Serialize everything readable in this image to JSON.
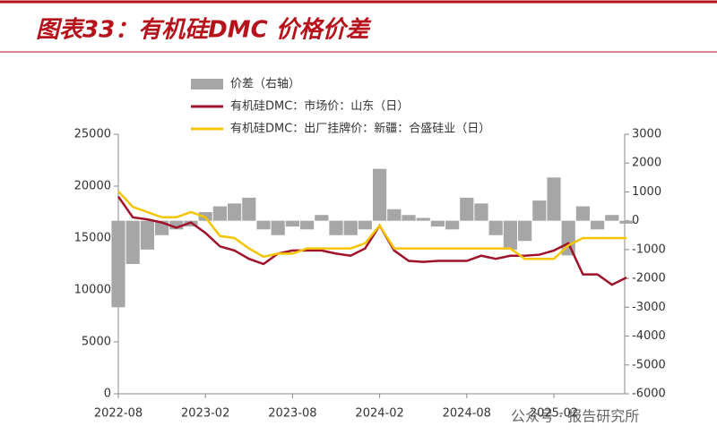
{
  "chart_data": {
    "type": "bar_line_dual",
    "title": "图表33：有机硅DMC 价格价差",
    "categories": [
      "2022-08",
      "2022-09",
      "2022-10",
      "2022-11",
      "2022-12",
      "2023-01",
      "2023-02",
      "2023-03",
      "2023-04",
      "2023-05",
      "2023-06",
      "2023-07",
      "2023-08",
      "2023-09",
      "2023-10",
      "2023-11",
      "2023-12",
      "2024-01",
      "2024-02",
      "2024-03",
      "2024-04",
      "2024-05",
      "2024-06",
      "2024-07",
      "2024-08",
      "2024-09",
      "2024-10",
      "2024-11",
      "2024-12",
      "2025-01",
      "2025-02",
      "2025-03",
      "2025-04",
      "2025-05",
      "2025-06",
      "2025-07"
    ],
    "xticks": [
      {
        "value": 0,
        "label": "2022-08"
      },
      {
        "value": 6,
        "label": "2023-02"
      },
      {
        "value": 12,
        "label": "2023-08"
      },
      {
        "value": 18,
        "label": "2024-02"
      },
      {
        "value": 24,
        "label": "2024-08"
      },
      {
        "value": 30,
        "label": "2025-02"
      }
    ],
    "series": [
      {
        "name": "价差（右轴）",
        "color": "#a6a6a6",
        "axis": "y2",
        "kind": "bar",
        "values": [
          -3000,
          -1500,
          -1000,
          -500,
          -300,
          -200,
          300,
          500,
          600,
          800,
          -300,
          -500,
          -200,
          -300,
          200,
          -500,
          -500,
          -300,
          1800,
          400,
          200,
          100,
          -200,
          -300,
          800,
          600,
          -500,
          -1000,
          -700,
          700,
          1500,
          -1200,
          500,
          -300,
          200,
          -100
        ]
      },
      {
        "name": "有机硅DMC：市场价：山东（日）",
        "color": "#a0122a",
        "kind": "line",
        "values": [
          19000,
          17000,
          16800,
          16500,
          16000,
          16500,
          15500,
          14200,
          13800,
          13000,
          12500,
          13500,
          13800,
          13800,
          13800,
          13500,
          13300,
          14000,
          16200,
          13800,
          12800,
          12700,
          12800,
          12800,
          12800,
          13300,
          13000,
          13300,
          13300,
          13400,
          13800,
          14500,
          11500,
          11500,
          10500,
          11200
        ]
      },
      {
        "name": "有机硅DMC：出厂挂牌价：新疆：合盛硅业（日）",
        "color": "#f5c400",
        "kind": "line",
        "values": [
          19500,
          18000,
          17500,
          17000,
          17000,
          17500,
          17000,
          15200,
          15000,
          14000,
          13200,
          13500,
          13500,
          14000,
          14000,
          14000,
          14000,
          14500,
          16200,
          14000,
          14000,
          14000,
          14000,
          14000,
          14000,
          14000,
          14000,
          14000,
          13000,
          13000,
          13000,
          14300,
          15000,
          15000,
          15000,
          15000
        ]
      }
    ],
    "ylim": [
      0,
      25000
    ],
    "yticks": [
      0,
      5000,
      10000,
      15000,
      20000,
      25000
    ],
    "y2lim": [
      -6000,
      3000
    ],
    "y2ticks": [
      -6000,
      -5000,
      -4000,
      -3000,
      -2000,
      -1000,
      0,
      1000,
      2000,
      3000
    ],
    "watermark": "公众号 · 报告研究所"
  }
}
